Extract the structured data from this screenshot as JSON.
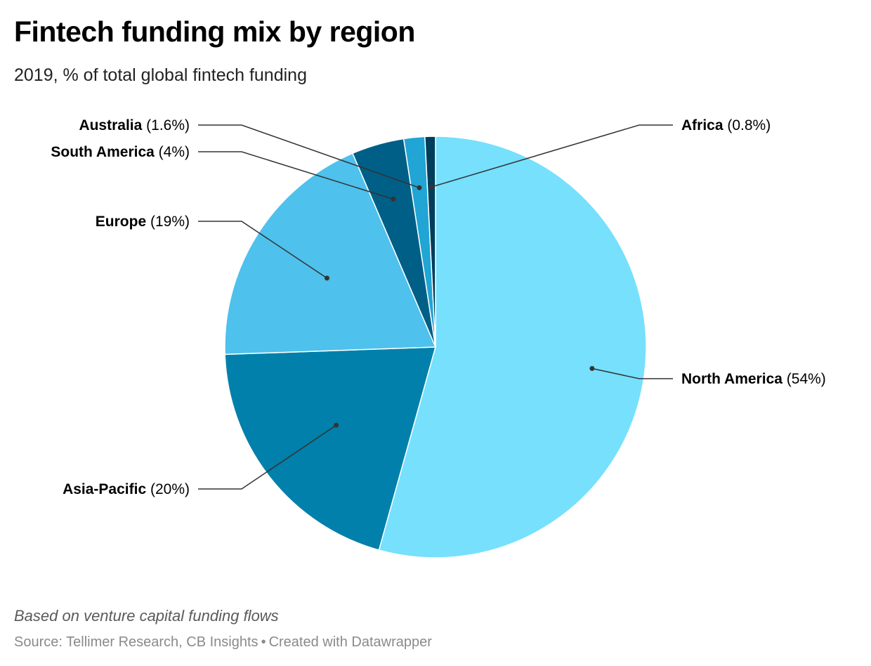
{
  "header": {
    "title": "Fintech funding mix by region",
    "subtitle": "2019, % of total global fintech funding"
  },
  "footer": {
    "notes": "Based on venture capital funding flows",
    "source": "Source: Tellimer Research, CB Insights",
    "separator": "•",
    "credit": "Created with Datawrapper"
  },
  "chart_data": {
    "type": "pie",
    "title": "Fintech funding mix by region",
    "subtitle": "2019, % of total global fintech funding",
    "unit": "%",
    "legend": "none (labels beside slices)",
    "slices": [
      {
        "label": "North America",
        "value": 54,
        "display": "(54%)",
        "color": "#76e0fd"
      },
      {
        "label": "Asia-Pacific",
        "value": 20,
        "display": "(20%)",
        "color": "#0080aa"
      },
      {
        "label": "Europe",
        "value": 19,
        "display": "(19%)",
        "color": "#4ec1ed"
      },
      {
        "label": "South America",
        "value": 4,
        "display": "(4%)",
        "color": "#005f87"
      },
      {
        "label": "Australia",
        "value": 1.6,
        "display": "(1.6%)",
        "color": "#20a5d4"
      },
      {
        "label": "Africa",
        "value": 0.8,
        "display": "(0.8%)",
        "color": "#003e5c"
      }
    ],
    "colors": {
      "slice_border": "#ffffff",
      "leader_line": "#333333",
      "anchor_dot": "#333333"
    }
  }
}
